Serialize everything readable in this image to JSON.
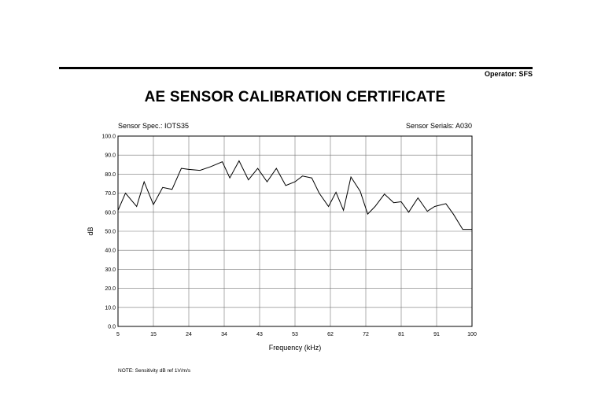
{
  "header": {
    "operator": "Operator: SFS",
    "title": "AE SENSOR CALIBRATION CERTIFICATE",
    "sensor_spec": "Sensor Spec.: IOTS35",
    "sensor_serials": "Sensor Serials: A030",
    "note": "NOTE:  Sensitivity dB ref 1V/m/s"
  },
  "chart_data": {
    "type": "line",
    "title": "",
    "xlabel": "Frequency (kHz)",
    "ylabel": "dB",
    "xlim": [
      5,
      100
    ],
    "ylim": [
      0,
      100
    ],
    "grid": true,
    "x_ticks": [
      "5",
      "15",
      "24",
      "34",
      "43",
      "53",
      "62",
      "72",
      "81",
      "91",
      "100"
    ],
    "y_ticks": [
      "0.0",
      "10.0",
      "20.0",
      "30.0",
      "40.0",
      "50.0",
      "60.0",
      "70.0",
      "80.0",
      "90.0",
      "100.0"
    ],
    "series": [
      {
        "x": [
          5,
          7,
          10,
          12,
          14.5,
          17,
          19.5,
          22,
          24,
          27,
          30,
          33,
          35,
          37.5,
          40,
          42.5,
          45,
          47.5,
          50,
          52.5,
          54.5,
          57,
          59,
          61.5,
          63.5,
          65.5,
          67.5,
          70,
          72,
          74,
          76.5,
          79,
          81,
          83,
          85.5,
          88,
          90,
          93,
          95,
          97.5,
          100
        ],
        "y": [
          61,
          70,
          63,
          76,
          64,
          73,
          72,
          83,
          82.5,
          82,
          84,
          86.5,
          78,
          87,
          77,
          83,
          76,
          83,
          74,
          76,
          79,
          78,
          70,
          63,
          70.5,
          61,
          78.5,
          71,
          59,
          63,
          69.5,
          65,
          65.5,
          60,
          67.5,
          60.5,
          63,
          64.5,
          59,
          51,
          51
        ]
      }
    ]
  }
}
